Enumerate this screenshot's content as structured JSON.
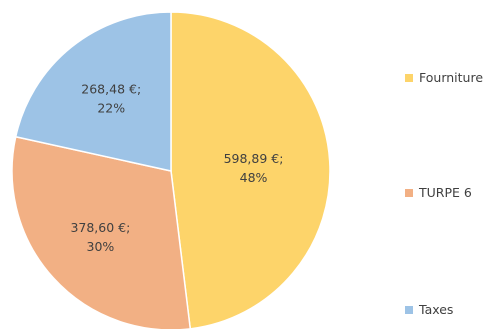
{
  "chart_data": {
    "type": "pie",
    "slices": [
      {
        "name": "Fourniture",
        "value": 598.89,
        "value_label": "598,89 €;",
        "percent_label": "48%",
        "color": "#FDD46A"
      },
      {
        "name": "TURPE 6",
        "value": 378.6,
        "value_label": "378,60 €;",
        "percent_label": "30%",
        "color": "#F2B084"
      },
      {
        "name": "Taxes",
        "value": 268.48,
        "value_label": "268,48 €;",
        "percent_label": "22%",
        "color": "#9DC3E6"
      }
    ],
    "start": "12 o'clock",
    "direction": "clockwise",
    "legend_position": "right"
  }
}
